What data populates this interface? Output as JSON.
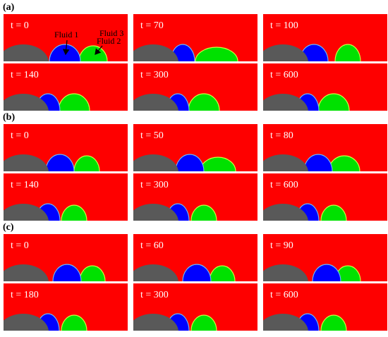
{
  "figure": {
    "groups": [
      {
        "label": "(a)",
        "panels": [
          "t = 0",
          "t = 70",
          "t = 100",
          "t = 140",
          "t = 300",
          "t = 600"
        ]
      },
      {
        "label": "(b)",
        "panels": [
          "t = 0",
          "t = 50",
          "t = 80",
          "t = 140",
          "t = 300",
          "t = 600"
        ]
      },
      {
        "label": "(c)",
        "panels": [
          "t = 0",
          "t = 60",
          "t = 90",
          "t = 180",
          "t = 300",
          "t = 600"
        ]
      }
    ],
    "annotations": [
      "Fluid 1",
      "Fluid 3",
      "Fluid 2"
    ]
  }
}
